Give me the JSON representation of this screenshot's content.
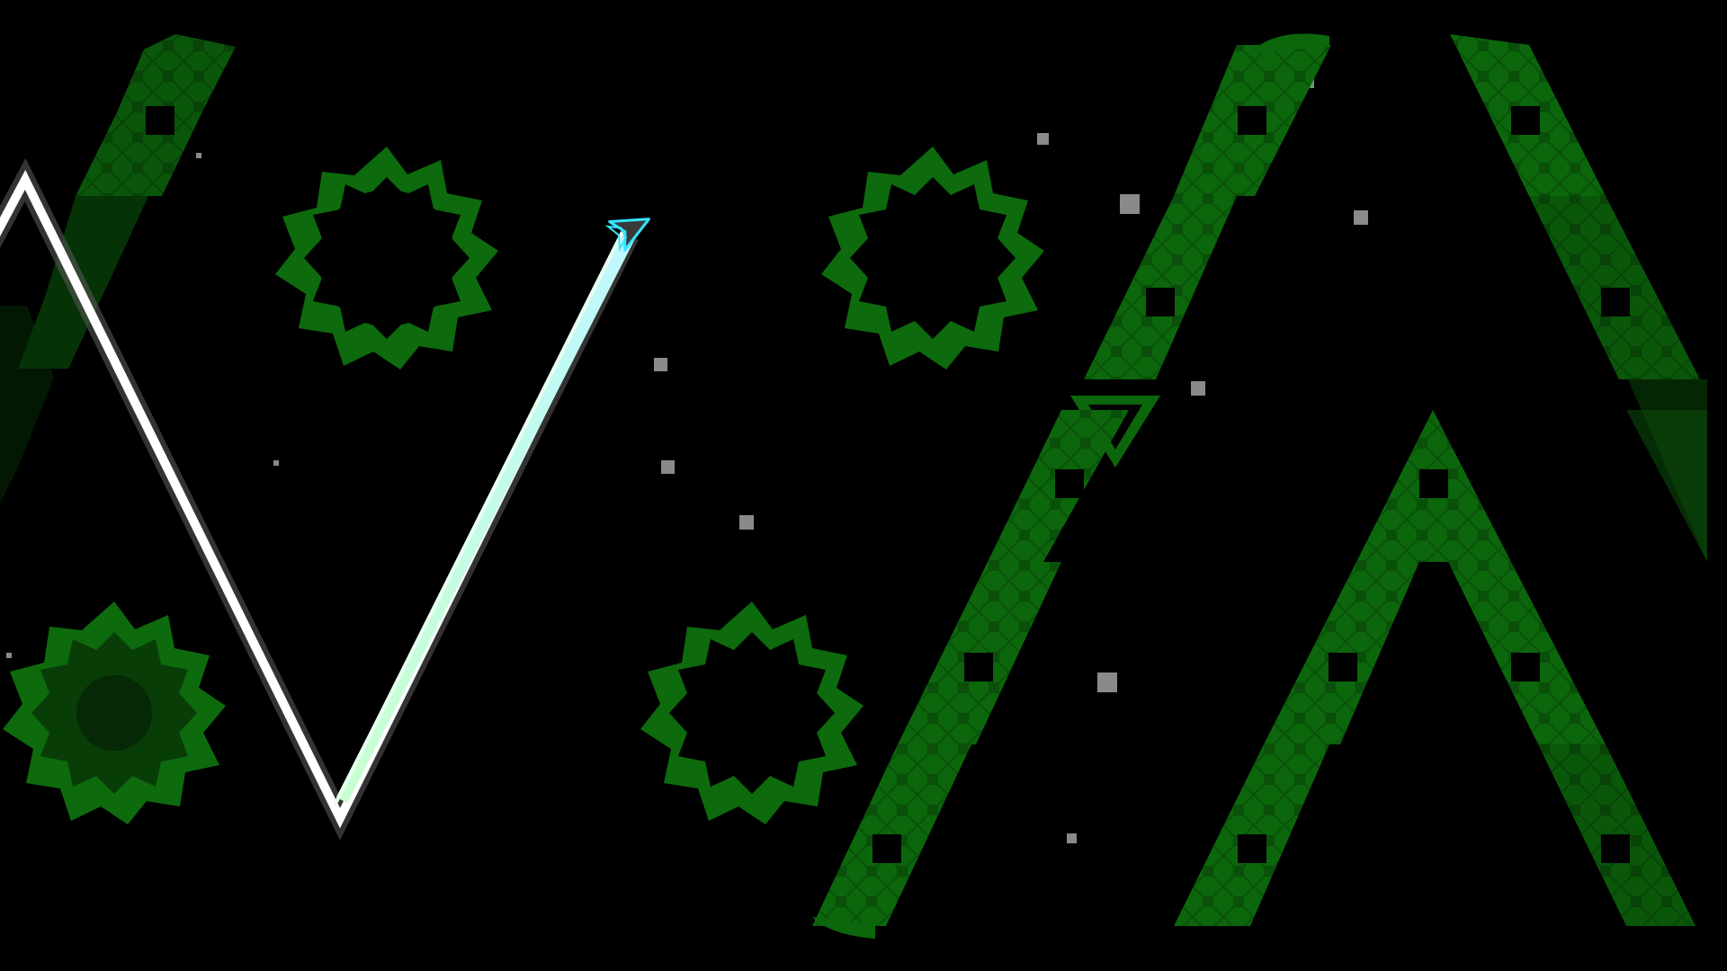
{
  "game": {
    "mode": "wave",
    "colors": {
      "background": "#000000",
      "primary_green": "#0f6a0f",
      "dark_green": "#0a4a0a",
      "light_green": "#1a8a1a",
      "trail_white": "#ffffff",
      "trail_glow": "#b8f0c8",
      "player_outline": "#33e6ff",
      "player_fill": "#3a3a3a",
      "particle": "#8a8a8a"
    },
    "icons": {
      "player": "wave-arrow-icon",
      "hazard": "spiked-saw-icon",
      "obstacle": "zigzag-block-icon"
    }
  }
}
